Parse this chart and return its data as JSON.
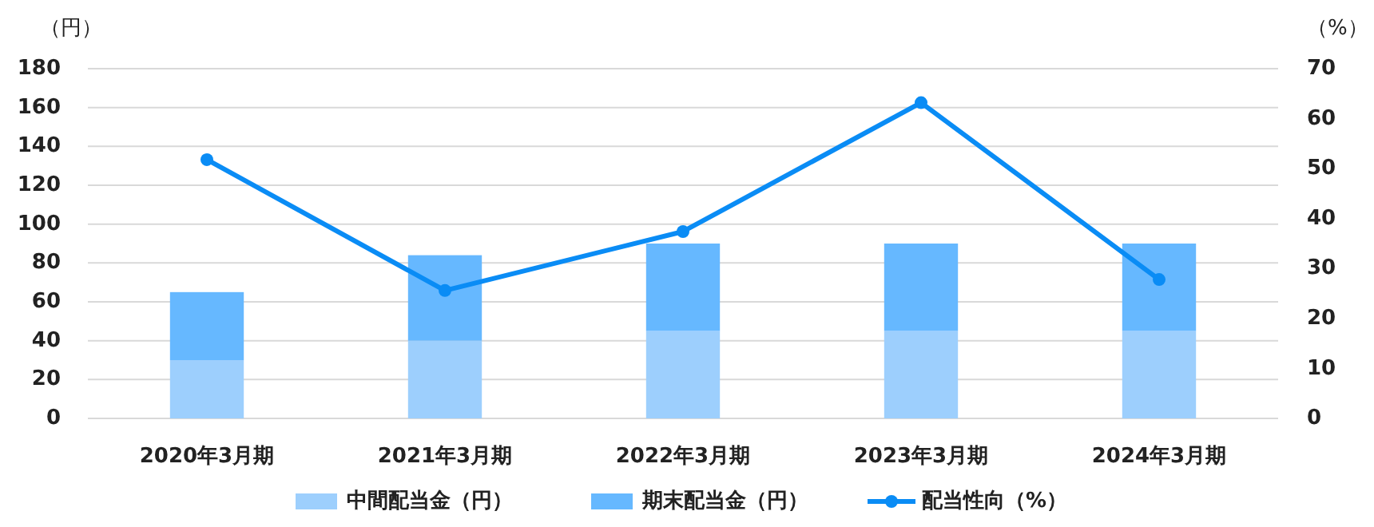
{
  "chart_data": {
    "type": "bar",
    "stacked": true,
    "ylabel": "（円）",
    "y2label": "（%）",
    "categories": [
      "2020年3月期",
      "2021年3月期",
      "2022年3月期",
      "2023年3月期",
      "2024年3月期"
    ],
    "series": [
      {
        "name": "中間配当金（円）",
        "color": "#9dcffd",
        "values": [
          30,
          40,
          45,
          45,
          45
        ]
      },
      {
        "name": "期末配当金（円）",
        "color": "#66b8ff",
        "values": [
          35,
          44,
          45,
          45,
          45
        ]
      },
      {
        "name": "配当性向（%）",
        "color": "#0a8cf5",
        "type": "line",
        "axis": "y2",
        "marker": "circle",
        "values": [
          51.8,
          25.6,
          37.4,
          63.2,
          27.8
        ]
      }
    ],
    "ylim": [
      0,
      180
    ],
    "yticks": [
      0,
      20,
      40,
      60,
      80,
      100,
      120,
      140,
      160,
      180
    ],
    "y2lim": [
      0,
      70
    ],
    "y2ticks": [
      0,
      10,
      20,
      30,
      40,
      50,
      60,
      70
    ],
    "grid": "y",
    "legend": "bottom"
  }
}
